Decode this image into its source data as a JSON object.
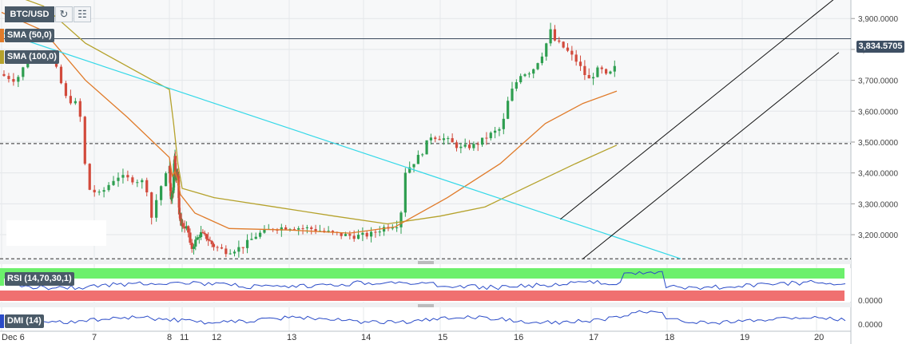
{
  "toolbar": {
    "symbol": "BTC/USD",
    "refresh_icon": "refresh-icon",
    "grid_icon": "calendar-grid-icon"
  },
  "indicators": {
    "sma50": {
      "label": "SMA (50,0)",
      "color": "#e07b2a"
    },
    "sma100": {
      "label": "SMA (100,0)",
      "color": "#b5a22c"
    },
    "rsi": {
      "label": "RSI (14,70,30,1)",
      "overbought_color": "#6cf06c",
      "oversold_color": "#f07070",
      "line_color": "#2a4bc8"
    },
    "dmi": {
      "label": "DMI (14)",
      "line_color": "#2a4bc8"
    }
  },
  "current_price_label": "3,834.5705",
  "chart_data": {
    "type": "candlestick",
    "title": "",
    "y_axis": {
      "range": [
        3120,
        3960
      ],
      "ticks": [
        3200,
        3300,
        3400,
        3500,
        3600,
        3700,
        3800,
        3900
      ],
      "tick_labels": [
        "3,200.0000",
        "3,300.0000",
        "3,400.0000",
        "3,500.0000",
        "3,600.0000",
        "3,700.0000",
        "3,800.0000",
        "3,900.0000"
      ]
    },
    "x_axis": {
      "tick_labels": [
        "Dec 6",
        "7",
        "8",
        "11",
        "12",
        "13",
        "14",
        "15",
        "16",
        "17",
        "18",
        "19",
        "20"
      ]
    },
    "current_price": 3834.5705,
    "horizontal_levels": [
      3834.5705,
      3495,
      3122
    ],
    "channel": {
      "upper": [
        {
          "x": 16.6,
          "y": 3250
        },
        {
          "x": 20.3,
          "y": 3975
        }
      ],
      "lower": [
        {
          "x": 16.9,
          "y": 3122
        },
        {
          "x": 20.3,
          "y": 3790
        }
      ]
    },
    "trendline": [
      {
        "x": 6.0,
        "y": 3855
      },
      {
        "x": 18.2,
        "y": 3122
      }
    ],
    "price_anchors": [
      [
        6.0,
        3720
      ],
      [
        6.2,
        3700
      ],
      [
        6.35,
        3770
      ],
      [
        6.5,
        3790
      ],
      [
        6.65,
        3760
      ],
      [
        6.8,
        3640
      ],
      [
        6.95,
        3620
      ],
      [
        7.05,
        3350
      ],
      [
        7.2,
        3330
      ],
      [
        7.4,
        3390
      ],
      [
        7.55,
        3380
      ],
      [
        7.75,
        3370
      ],
      [
        7.8,
        3240
      ],
      [
        7.9,
        3340
      ],
      [
        8.0,
        3400
      ],
      [
        8.1,
        3420
      ],
      [
        8.2,
        3380
      ],
      [
        8.4,
        3320
      ],
      [
        8.7,
        3330
      ],
      [
        9.0,
        3350
      ],
      [
        9.2,
        3440
      ],
      [
        9.35,
        3450
      ],
      [
        9.5,
        3380
      ],
      [
        9.8,
        3390
      ],
      [
        10.0,
        3400
      ],
      [
        10.2,
        3360
      ],
      [
        10.35,
        3270
      ],
      [
        10.6,
        3255
      ],
      [
        10.9,
        3240
      ],
      [
        11.2,
        3220
      ],
      [
        11.3,
        3150
      ],
      [
        11.45,
        3180
      ],
      [
        11.6,
        3205
      ],
      [
        11.8,
        3190
      ],
      [
        12.0,
        3165
      ],
      [
        12.2,
        3145
      ],
      [
        12.4,
        3160
      ],
      [
        12.6,
        3200
      ],
      [
        12.8,
        3220
      ],
      [
        13.0,
        3225
      ],
      [
        13.3,
        3220
      ],
      [
        13.5,
        3210
      ],
      [
        13.7,
        3200
      ],
      [
        13.9,
        3195
      ],
      [
        14.1,
        3200
      ],
      [
        14.3,
        3225
      ],
      [
        14.5,
        3235
      ],
      [
        14.55,
        3400
      ],
      [
        14.7,
        3440
      ],
      [
        14.8,
        3470
      ],
      [
        14.9,
        3520
      ],
      [
        15.1,
        3510
      ],
      [
        15.3,
        3480
      ],
      [
        15.5,
        3490
      ],
      [
        15.7,
        3525
      ],
      [
        15.85,
        3545
      ],
      [
        15.95,
        3650
      ],
      [
        16.1,
        3720
      ],
      [
        16.25,
        3730
      ],
      [
        16.4,
        3790
      ],
      [
        16.5,
        3860
      ],
      [
        16.55,
        3830
      ],
      [
        16.7,
        3800
      ],
      [
        16.85,
        3760
      ],
      [
        17.0,
        3700
      ],
      [
        17.15,
        3740
      ],
      [
        17.25,
        3710
      ],
      [
        17.35,
        3740
      ]
    ],
    "sma50_anchors": [
      [
        6.0,
        3920
      ],
      [
        6.5,
        3860
      ],
      [
        7.0,
        3700
      ],
      [
        7.5,
        3580
      ],
      [
        8.0,
        3450
      ],
      [
        8.7,
        3390
      ],
      [
        9.3,
        3405
      ],
      [
        10.0,
        3375
      ],
      [
        10.6,
        3330
      ],
      [
        11.4,
        3270
      ],
      [
        12.2,
        3220
      ],
      [
        13.0,
        3215
      ],
      [
        13.8,
        3205
      ],
      [
        14.4,
        3225
      ],
      [
        15.1,
        3320
      ],
      [
        15.8,
        3430
      ],
      [
        16.4,
        3560
      ],
      [
        16.9,
        3625
      ],
      [
        17.35,
        3665
      ]
    ],
    "sma100_anchors": [
      [
        6.0,
        3990
      ],
      [
        6.5,
        3940
      ],
      [
        7.0,
        3820
      ],
      [
        8.0,
        3670
      ],
      [
        9.0,
        3560
      ],
      [
        10.0,
        3430
      ],
      [
        11.0,
        3350
      ],
      [
        12.0,
        3320
      ],
      [
        12.8,
        3290
      ],
      [
        13.6,
        3260
      ],
      [
        14.3,
        3235
      ],
      [
        15.0,
        3260
      ],
      [
        15.6,
        3290
      ],
      [
        16.2,
        3360
      ],
      [
        16.8,
        3430
      ],
      [
        17.35,
        3490
      ]
    ],
    "rsi_range": [
      0,
      100
    ],
    "rsi_levels": [
      70,
      30
    ],
    "rsi_tick_label": "0.0000",
    "dmi_tick_label": "0.0000"
  }
}
